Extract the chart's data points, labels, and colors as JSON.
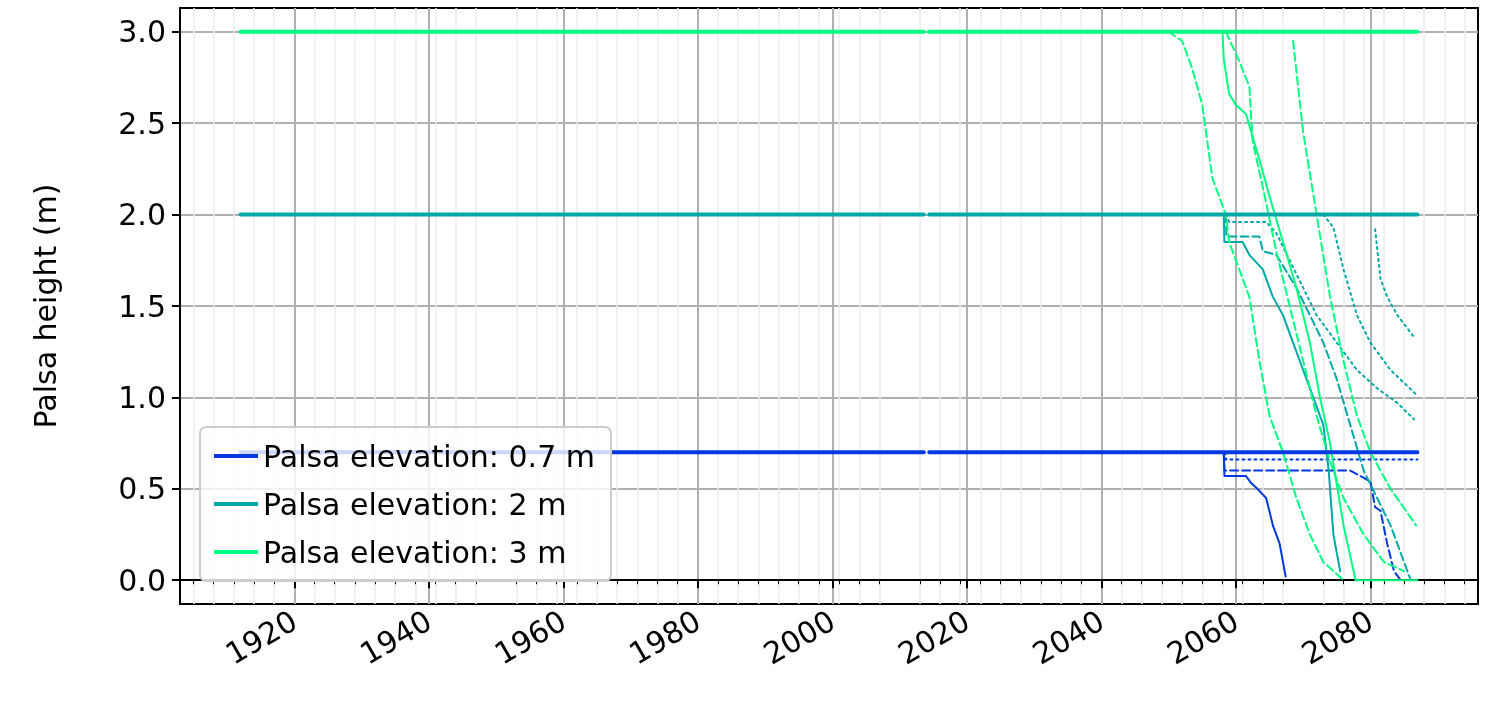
{
  "chart_data": {
    "type": "line",
    "ylabel": "Palsa height (m)",
    "xlim": [
      1903,
      2096
    ],
    "xticks": [
      1920,
      1940,
      1960,
      1980,
      2000,
      2020,
      2040,
      2060,
      2080
    ],
    "ylim": [
      -0.13,
      3.13
    ],
    "yticks": [
      {
        "value": 0,
        "label": "0.0"
      },
      {
        "value": 0.5,
        "label": "0.5"
      },
      {
        "value": 1,
        "label": "1.0"
      },
      {
        "value": 1.5,
        "label": "1.5"
      },
      {
        "value": 2,
        "label": "2.0"
      },
      {
        "value": 2.5,
        "label": "2.5"
      },
      {
        "value": 3,
        "label": "3.0"
      }
    ],
    "grid": true,
    "legend": "bottom left",
    "marker": "none",
    "series": [
      {
        "name": "Palsa elevation: 0.7 m",
        "color": "#0038e0",
        "line_style": "solid",
        "x": [
          1912,
          2013.6,
          2014,
          2014.4,
          2087
        ],
        "values": [
          0.7,
          0.7,
          null,
          0.7,
          0.7
        ]
      },
      {
        "name": "Palsa elevation: 2 m",
        "color": "#00a8a8",
        "line_style": "solid",
        "x": [
          1912,
          2013.6,
          2014,
          2014.4,
          2087
        ],
        "values": [
          2,
          2,
          null,
          2,
          2
        ]
      },
      {
        "name": "Palsa elevation: 3 m",
        "color": "#00ff80",
        "line_style": "solid",
        "x": [
          1912,
          2013.6,
          2014,
          2014.4,
          2087
        ],
        "values": [
          3,
          3,
          null,
          3,
          3
        ]
      },
      {
        "color": "#0038e0",
        "line_style": "solid",
        "x": [
          2058.2,
          2058.3,
          2061.5,
          2062.3,
          2063.2,
          2064.5,
          2065.5,
          2066.5,
          2067.4
        ],
        "values": [
          0.7,
          0.57,
          0.57,
          0.53,
          0.5,
          0.45,
          0.3,
          0.2,
          0.02
        ]
      },
      {
        "color": "#0038e0",
        "line_style": "dashed",
        "x": [
          2058.2,
          2058.3,
          2077,
          2077.5,
          2080,
          2080.7,
          2081.5,
          2082.5,
          2083.5,
          2084.5
        ],
        "values": [
          0.7,
          0.6,
          0.6,
          0.59,
          0.54,
          0.4,
          0.38,
          0.2,
          0.05,
          0
        ]
      },
      {
        "color": "#0038e0",
        "line_style": "dotted",
        "x": [
          2058.4,
          2058.5,
          2087
        ],
        "values": [
          0.7,
          0.66,
          0.66
        ]
      },
      {
        "color": "#00a8a8",
        "line_style": "solid",
        "x": [
          2058.2,
          2058.3,
          2061,
          2062,
          2064,
          2065.5,
          2067,
          2068.5,
          2070,
          2071.5,
          2073,
          2073.8,
          2074.5,
          2075.5
        ],
        "values": [
          2,
          1.85,
          1.85,
          1.78,
          1.7,
          1.55,
          1.45,
          1.3,
          1.15,
          1,
          0.85,
          0.6,
          0.25,
          0.05
        ]
      },
      {
        "color": "#00a8a8",
        "line_style": "dashed",
        "x": [
          2058.5,
          2058.6,
          2063.5,
          2064,
          2066,
          2067,
          2069,
          2071,
          2073,
          2075,
          2077,
          2079,
          2081,
          2083,
          2085,
          2086
        ],
        "values": [
          2,
          1.88,
          1.88,
          1.8,
          1.78,
          1.72,
          1.6,
          1.45,
          1.3,
          1.1,
          0.85,
          0.6,
          0.45,
          0.3,
          0.1,
          0
        ]
      },
      {
        "color": "#00a8a8",
        "line_style": "dotted",
        "x": [
          2058.5,
          2059,
          2064.5,
          2066,
          2068,
          2070,
          2072,
          2075,
          2078,
          2081,
          2084,
          2086.5
        ],
        "values": [
          2,
          1.96,
          1.96,
          1.9,
          1.75,
          1.6,
          1.45,
          1.3,
          1.15,
          1.05,
          0.97,
          0.88
        ]
      },
      {
        "color": "#00a8a8",
        "line_style": "dotted",
        "x": [
          2073,
          2074.5,
          2076,
          2078,
          2080,
          2083,
          2086.7
        ],
        "values": [
          2,
          1.93,
          1.7,
          1.45,
          1.3,
          1.15,
          1.02
        ]
      },
      {
        "color": "#00a8a8",
        "line_style": "dotted",
        "x": [
          2080.7,
          2081.5,
          2082.5,
          2084,
          2086.7
        ],
        "values": [
          1.92,
          1.65,
          1.55,
          1.45,
          1.32
        ]
      },
      {
        "color": "#00ff80",
        "line_style": "solid",
        "x": [
          2058,
          2058.2,
          2059,
          2060,
          2061.5,
          2063.5,
          2065,
          2067,
          2069,
          2071,
          2072.5,
          2074,
          2076,
          2077.8,
          2087
        ],
        "values": [
          3,
          2.85,
          2.66,
          2.6,
          2.55,
          2.3,
          2.1,
          1.85,
          1.6,
          1.3,
          1,
          0.75,
          0.3,
          0,
          0
        ]
      },
      {
        "color": "#00ff80",
        "line_style": "dashed",
        "x": [
          2050,
          2052,
          2053.5,
          2055,
          2056.5,
          2058.5,
          2059,
          2060,
          2062,
          2063.5,
          2065,
          2067,
          2069,
          2071,
          2073,
          2076
        ],
        "values": [
          3,
          2.95,
          2.8,
          2.6,
          2.2,
          2,
          1.85,
          1.75,
          1.55,
          1.2,
          0.9,
          0.7,
          0.45,
          0.25,
          0.1,
          0
        ]
      },
      {
        "color": "#00ff80",
        "line_style": "dashed",
        "x": [
          2058.5,
          2060.5,
          2062,
          2062.5,
          2064,
          2066,
          2068,
          2070,
          2072,
          2074,
          2076,
          2079,
          2082,
          2085
        ],
        "values": [
          3,
          2.84,
          2.7,
          2.4,
          2.15,
          1.8,
          1.5,
          1.2,
          0.9,
          0.65,
          0.45,
          0.25,
          0.1,
          0.05
        ]
      },
      {
        "color": "#00ff80",
        "line_style": "dashed",
        "x": [
          2068.5,
          2070,
          2072,
          2074,
          2076,
          2078,
          2080,
          2083,
          2086.8
        ],
        "values": [
          2.95,
          2.45,
          2,
          1.55,
          1.2,
          0.9,
          0.7,
          0.5,
          0.3
        ]
      }
    ]
  }
}
